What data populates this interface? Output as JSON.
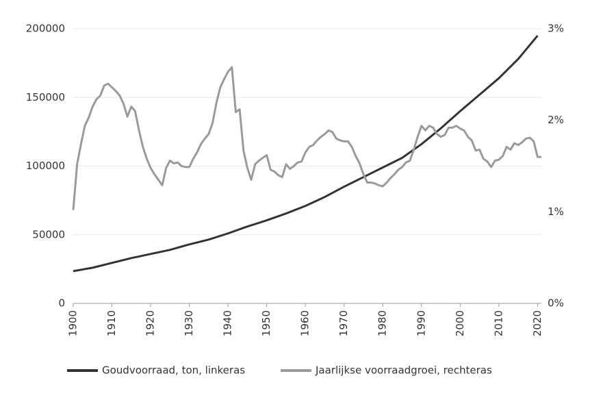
{
  "chart_data": {
    "type": "line",
    "series": [
      {
        "name": "Goudvoorraad, ton, linkeras",
        "color": "#333333",
        "axis": "y",
        "x": [
          1900,
          1905,
          1910,
          1915,
          1920,
          1925,
          1930,
          1935,
          1940,
          1945,
          1950,
          1955,
          1960,
          1965,
          1970,
          1975,
          1980,
          1985,
          1990,
          1995,
          2000,
          2005,
          2010,
          2015,
          2020
        ],
        "values": [
          23500,
          26000,
          29500,
          33000,
          36000,
          39000,
          43000,
          46500,
          51000,
          56000,
          60500,
          65500,
          71000,
          77500,
          85000,
          92000,
          99000,
          106000,
          116000,
          127500,
          140000,
          152000,
          164000,
          178000,
          195000
        ]
      },
      {
        "name": "Jaarlijkse voorraadgroei, rechteras",
        "color": "#9a9a9a",
        "axis": "y2",
        "x": [
          1900,
          1901,
          1902,
          1903,
          1904,
          1905,
          1906,
          1907,
          1908,
          1909,
          1910,
          1911,
          1912,
          1913,
          1914,
          1915,
          1916,
          1917,
          1918,
          1919,
          1920,
          1921,
          1922,
          1923,
          1924,
          1925,
          1926,
          1927,
          1928,
          1929,
          1930,
          1931,
          1932,
          1933,
          1934,
          1935,
          1936,
          1937,
          1938,
          1939,
          1940,
          1941,
          1942,
          1943,
          1944,
          1945,
          1946,
          1947,
          1948,
          1949,
          1950,
          1951,
          1952,
          1953,
          1954,
          1955,
          1956,
          1957,
          1958,
          1959,
          1960,
          1961,
          1962,
          1963,
          1964,
          1965,
          1966,
          1967,
          1968,
          1969,
          1970,
          1971,
          1972,
          1973,
          1974,
          1975,
          1976,
          1977,
          1978,
          1979,
          1980,
          1981,
          1982,
          1983,
          1984,
          1985,
          1986,
          1987,
          1988,
          1989,
          1990,
          1991,
          1992,
          1993,
          1994,
          1995,
          1996,
          1997,
          1998,
          1999,
          2000,
          2001,
          2002,
          2003,
          2004,
          2005,
          2006,
          2007,
          2008,
          2009,
          2010,
          2011,
          2012,
          2013,
          2014,
          2015,
          2016,
          2017,
          2018,
          2019,
          2020,
          2021
        ],
        "values": [
          1.02,
          1.52,
          1.74,
          1.94,
          2.03,
          2.15,
          2.23,
          2.27,
          2.38,
          2.4,
          2.36,
          2.32,
          2.27,
          2.18,
          2.04,
          2.15,
          2.1,
          1.89,
          1.71,
          1.58,
          1.48,
          1.41,
          1.35,
          1.29,
          1.48,
          1.56,
          1.53,
          1.54,
          1.5,
          1.49,
          1.49,
          1.58,
          1.65,
          1.74,
          1.8,
          1.85,
          1.97,
          2.19,
          2.36,
          2.45,
          2.53,
          2.58,
          2.09,
          2.12,
          1.67,
          1.48,
          1.35,
          1.52,
          1.56,
          1.59,
          1.62,
          1.46,
          1.44,
          1.4,
          1.38,
          1.52,
          1.47,
          1.5,
          1.54,
          1.55,
          1.65,
          1.71,
          1.73,
          1.78,
          1.82,
          1.85,
          1.89,
          1.87,
          1.8,
          1.78,
          1.77,
          1.77,
          1.71,
          1.61,
          1.53,
          1.41,
          1.32,
          1.32,
          1.31,
          1.29,
          1.28,
          1.32,
          1.37,
          1.41,
          1.46,
          1.49,
          1.54,
          1.56,
          1.68,
          1.82,
          1.94,
          1.89,
          1.94,
          1.92,
          1.85,
          1.82,
          1.84,
          1.92,
          1.92,
          1.94,
          1.91,
          1.89,
          1.82,
          1.78,
          1.67,
          1.68,
          1.58,
          1.55,
          1.49,
          1.56,
          1.57,
          1.61,
          1.71,
          1.68,
          1.75,
          1.73,
          1.76,
          1.8,
          1.81,
          1.77,
          1.6,
          1.6
        ]
      }
    ],
    "xlim": [
      1900,
      2021
    ],
    "xticks": [
      1900,
      1910,
      1920,
      1930,
      1940,
      1950,
      1960,
      1970,
      1980,
      1990,
      2000,
      2010,
      2020
    ],
    "ylim": [
      0,
      200000
    ],
    "yticks": [
      0,
      50000,
      100000,
      150000,
      200000
    ],
    "y2lim": [
      0,
      3
    ],
    "y2ticks": [
      {
        "value": 0,
        "label": "0%"
      },
      {
        "value": 1,
        "label": "1%"
      },
      {
        "value": 2,
        "label": "2%"
      },
      {
        "value": 3,
        "label": "3%"
      }
    ],
    "grid": true,
    "legend": "bottom"
  }
}
